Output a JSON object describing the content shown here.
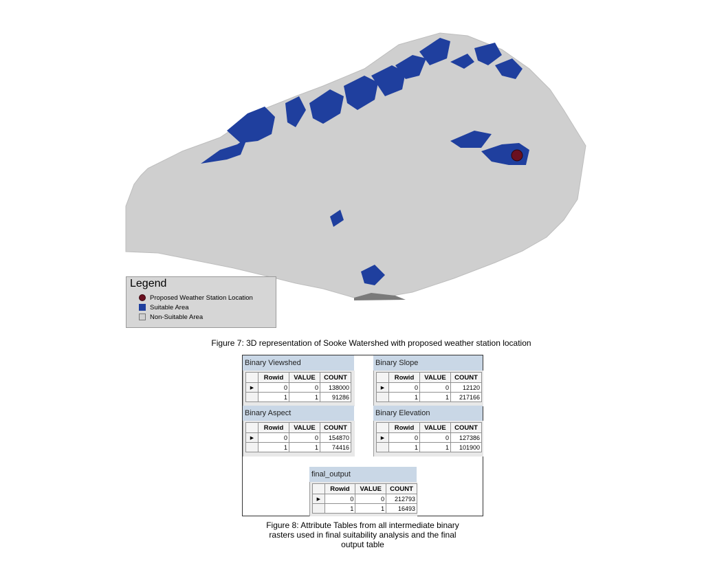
{
  "map": {
    "colors": {
      "suitable": "#1f3f9e",
      "non_suitable": "#d0d0d0",
      "station": "#6b1020"
    }
  },
  "legend": {
    "title": "Legend",
    "items": [
      {
        "label": "Proposed Weather Station Location",
        "icon": "station-dot-icon"
      },
      {
        "label": "Suitable Area",
        "icon": "suitable-swatch-icon"
      },
      {
        "label": "Non-Suitable Area",
        "icon": "non-suitable-swatch-icon"
      }
    ]
  },
  "figure7_caption": "Figure 7: 3D representation of Sooke Watershed with proposed weather station location",
  "tables": {
    "columns": [
      "Rowid",
      "VALUE",
      "COUNT"
    ],
    "viewshed": {
      "title": "Binary Viewshed",
      "rows": [
        [
          "0",
          "0",
          "138000"
        ],
        [
          "1",
          "1",
          "91286"
        ]
      ]
    },
    "slope": {
      "title": "Binary Slope",
      "rows": [
        [
          "0",
          "0",
          "12120"
        ],
        [
          "1",
          "1",
          "217166"
        ]
      ]
    },
    "aspect": {
      "title": "Binary Aspect",
      "rows": [
        [
          "0",
          "0",
          "154870"
        ],
        [
          "1",
          "1",
          "74416"
        ]
      ]
    },
    "elevation": {
      "title": "Binary Elevation",
      "rows": [
        [
          "0",
          "0",
          "127386"
        ],
        [
          "1",
          "1",
          "101900"
        ]
      ]
    },
    "final": {
      "title": "final_output",
      "rows": [
        [
          "0",
          "0",
          "212793"
        ],
        [
          "1",
          "1",
          "16493"
        ]
      ]
    }
  },
  "figure8_caption": {
    "line1": "Figure 8: Attribute Tables from all intermediate binary",
    "line2": "rasters used in final suitability analysis and the final",
    "line3": "output table"
  }
}
